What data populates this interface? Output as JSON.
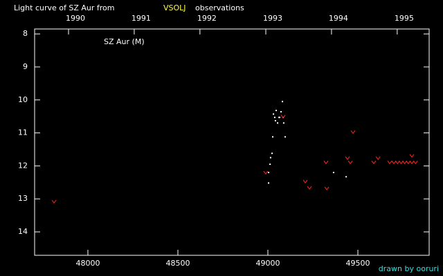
{
  "chart_data": {
    "type": "scatter",
    "title": "Light curve of SZ Aur from",
    "title_highlight": "VSOLJ",
    "title_suffix": "observations",
    "annotation": "SZ Aur (M)",
    "footer": "drawn by ooruri",
    "xlim": [
      47704,
      49896
    ],
    "xticks": [
      48000,
      48500,
      49000,
      49500
    ],
    "x2ticks": [
      {
        "value": 47892.5,
        "label": "1990"
      },
      {
        "value": 48257.5,
        "label": "1991"
      },
      {
        "value": 48622.5,
        "label": "1992"
      },
      {
        "value": 48988.5,
        "label": "1993"
      },
      {
        "value": 49353.5,
        "label": "1994"
      },
      {
        "value": 49718.5,
        "label": "1995"
      }
    ],
    "ylim": [
      7.85,
      14.71
    ],
    "yticks": [
      8,
      9,
      10,
      11,
      12,
      13,
      14
    ],
    "y_inverted": true,
    "series": [
      {
        "color": "#ffffff",
        "marker": "dot",
        "x": [
          49004,
          49004,
          49012,
          49015,
          49023,
          49027,
          49031,
          49038,
          49042,
          49046,
          49054,
          49062,
          49065,
          49073,
          49081,
          49085,
          49088,
          49096,
          49365,
          49435
        ],
        "values": [
          12.52,
          12.2,
          11.95,
          11.75,
          11.62,
          11.12,
          10.43,
          10.53,
          10.63,
          10.32,
          10.7,
          10.53,
          10.53,
          10.36,
          10.05,
          10.53,
          10.7,
          11.12,
          12.2,
          12.33
        ]
      },
      {
        "color": "#e02020",
        "marker": "v",
        "x": [
          47812,
          48988,
          49085,
          49208,
          49231,
          49323,
          49327,
          49442,
          49458,
          49473,
          49588,
          49612,
          49677,
          49700,
          49720,
          49740,
          49760,
          49780,
          49800,
          49820,
          49800
        ],
        "values": [
          13.08,
          12.2,
          10.5,
          12.47,
          12.66,
          11.89,
          12.68,
          11.76,
          11.89,
          10.97,
          11.89,
          11.76,
          11.89,
          11.89,
          11.89,
          11.89,
          11.89,
          11.89,
          11.89,
          11.89,
          11.69
        ]
      }
    ]
  }
}
